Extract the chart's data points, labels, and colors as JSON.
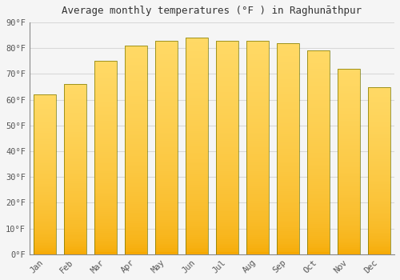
{
  "title": "Average monthly temperatures (°F ) in Raghunāthpur",
  "months": [
    "Jan",
    "Feb",
    "Mar",
    "Apr",
    "May",
    "Jun",
    "Jul",
    "Aug",
    "Sep",
    "Oct",
    "Nov",
    "Dec"
  ],
  "values": [
    62,
    66,
    75,
    81,
    83,
    84,
    83,
    83,
    82,
    79,
    72,
    65
  ],
  "bar_color_bottom": "#F5A800",
  "bar_color_top": "#FFD966",
  "bar_edge_color": "#888800",
  "background_color": "#f5f5f5",
  "plot_bg_color": "#f5f5f5",
  "ylim": [
    0,
    90
  ],
  "yticks": [
    0,
    10,
    20,
    30,
    40,
    50,
    60,
    70,
    80,
    90
  ],
  "ytick_labels": [
    "0°F",
    "10°F",
    "20°F",
    "30°F",
    "40°F",
    "50°F",
    "60°F",
    "70°F",
    "80°F",
    "90°F"
  ],
  "grid_color": "#d8d8d8",
  "title_fontsize": 9,
  "tick_fontsize": 7.5,
  "bar_width": 0.72
}
